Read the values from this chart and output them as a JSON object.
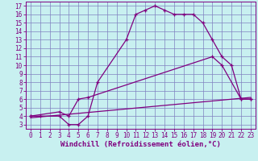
{
  "xlabel": "Windchill (Refroidissement éolien,°C)",
  "background_color": "#c8f0f0",
  "line_color": "#800080",
  "grid_color": "#8080c0",
  "xlim": [
    -0.5,
    23.5
  ],
  "ylim": [
    2.5,
    17.5
  ],
  "xticks": [
    0,
    1,
    2,
    3,
    4,
    5,
    6,
    7,
    8,
    9,
    10,
    11,
    12,
    13,
    14,
    15,
    16,
    17,
    18,
    19,
    20,
    21,
    22,
    23
  ],
  "yticks": [
    3,
    4,
    5,
    6,
    7,
    8,
    9,
    10,
    11,
    12,
    13,
    14,
    15,
    16,
    17
  ],
  "curve1_x": [
    0,
    1,
    3,
    4,
    5,
    6,
    7,
    10,
    11,
    12,
    13,
    14,
    15,
    16,
    17,
    18,
    19,
    20,
    21,
    22,
    23
  ],
  "curve1_y": [
    4,
    4,
    4,
    3,
    3,
    4,
    8,
    13,
    16,
    16.5,
    17,
    16.5,
    16,
    16,
    16,
    15,
    13,
    11,
    10,
    6,
    6
  ],
  "curve2_x": [
    0,
    3,
    4,
    5,
    6,
    19,
    20,
    22,
    23
  ],
  "curve2_y": [
    4,
    4.5,
    4,
    6,
    6.2,
    11,
    10,
    6,
    6
  ],
  "curve3_x": [
    0,
    23
  ],
  "curve3_y": [
    3.8,
    6.2
  ],
  "tick_label_fontsize": 5.5,
  "xlabel_fontsize": 6.5
}
